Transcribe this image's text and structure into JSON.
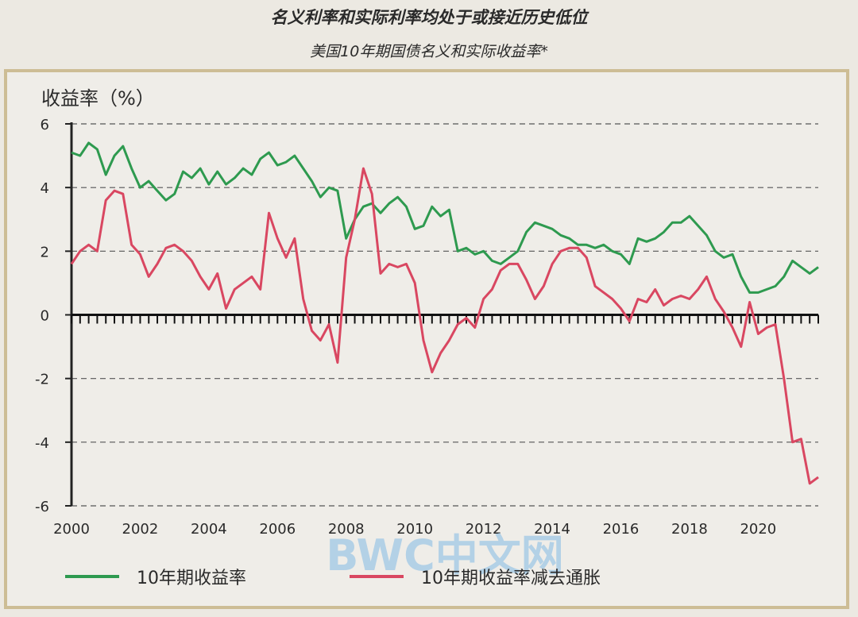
{
  "header": {
    "title": "名义利率和实际利率均处于或接近历史低位",
    "subtitle": "美国10年期国债名义和实际收益率*"
  },
  "watermark": "BWC中文网",
  "colors": {
    "nominal": "#2e9a4f",
    "real": "#d94761",
    "frame": "#cdbd95",
    "grid": "#555555",
    "background": "#efede8",
    "watermark": "#9fc7e6"
  },
  "chart_data": {
    "type": "line",
    "ylabel": "收益率（%）",
    "ylim": [
      -6,
      6
    ],
    "yticks": [
      6,
      4,
      2,
      0,
      -2,
      -4,
      -6
    ],
    "ytick_labels": [
      "6",
      "4",
      "2",
      "0",
      "-2",
      "-4",
      "-6"
    ],
    "xlim": [
      2000,
      2021.75
    ],
    "xticks": [
      2000,
      2002,
      2004,
      2006,
      2008,
      2010,
      2012,
      2014,
      2016,
      2018,
      2020
    ],
    "xtick_labels": [
      "2000",
      "2002",
      "2004",
      "2006",
      "2008",
      "2010",
      "2012",
      "2014",
      "2016",
      "2018",
      "2020"
    ],
    "grid": "horizontal dashed",
    "legend": "bottom",
    "series": [
      {
        "name": "10年期收益率",
        "color": "#2e9a4f",
        "x": [
          2000.0,
          2000.25,
          2000.5,
          2000.75,
          2001.0,
          2001.25,
          2001.5,
          2001.75,
          2002.0,
          2002.25,
          2002.5,
          2002.75,
          2003.0,
          2003.25,
          2003.5,
          2003.75,
          2004.0,
          2004.25,
          2004.5,
          2004.75,
          2005.0,
          2005.25,
          2005.5,
          2005.75,
          2006.0,
          2006.25,
          2006.5,
          2006.75,
          2007.0,
          2007.25,
          2007.5,
          2007.75,
          2008.0,
          2008.25,
          2008.5,
          2008.75,
          2009.0,
          2009.25,
          2009.5,
          2009.75,
          2010.0,
          2010.25,
          2010.5,
          2010.75,
          2011.0,
          2011.25,
          2011.5,
          2011.75,
          2012.0,
          2012.25,
          2012.5,
          2012.75,
          2013.0,
          2013.25,
          2013.5,
          2013.75,
          2014.0,
          2014.25,
          2014.5,
          2014.75,
          2015.0,
          2015.25,
          2015.5,
          2015.75,
          2016.0,
          2016.25,
          2016.5,
          2016.75,
          2017.0,
          2017.25,
          2017.5,
          2017.75,
          2018.0,
          2018.25,
          2018.5,
          2018.75,
          2019.0,
          2019.25,
          2019.5,
          2019.75,
          2020.0,
          2020.25,
          2020.5,
          2020.75,
          2021.0,
          2021.25,
          2021.5,
          2021.75
        ],
        "values": [
          5.1,
          5.0,
          5.4,
          5.2,
          4.4,
          5.0,
          5.3,
          4.6,
          4.0,
          4.2,
          3.9,
          3.6,
          3.8,
          4.5,
          4.3,
          4.6,
          4.1,
          4.5,
          4.1,
          4.3,
          4.6,
          4.4,
          4.9,
          5.1,
          4.7,
          4.8,
          5.0,
          4.6,
          4.2,
          3.7,
          4.0,
          3.9,
          2.4,
          3.0,
          3.4,
          3.5,
          3.2,
          3.5,
          3.7,
          3.4,
          2.7,
          2.8,
          3.4,
          3.1,
          3.3,
          2.0,
          2.1,
          1.9,
          2.0,
          1.7,
          1.6,
          1.8,
          2.0,
          2.6,
          2.9,
          2.8,
          2.7,
          2.5,
          2.4,
          2.2,
          2.2,
          2.1,
          2.2,
          2.0,
          1.9,
          1.6,
          2.4,
          2.3,
          2.4,
          2.6,
          2.9,
          2.9,
          3.1,
          2.8,
          2.5,
          2.0,
          1.8,
          1.9,
          1.2,
          0.7,
          0.7,
          0.8,
          0.9,
          1.2,
          1.7,
          1.5,
          1.3,
          1.5
        ]
      },
      {
        "name": "10年期收益率减去通胀",
        "color": "#d94761",
        "x": [
          2000.0,
          2000.25,
          2000.5,
          2000.75,
          2001.0,
          2001.25,
          2001.5,
          2001.75,
          2002.0,
          2002.25,
          2002.5,
          2002.75,
          2003.0,
          2003.25,
          2003.5,
          2003.75,
          2004.0,
          2004.25,
          2004.5,
          2004.75,
          2005.0,
          2005.25,
          2005.5,
          2005.75,
          2006.0,
          2006.25,
          2006.5,
          2006.75,
          2007.0,
          2007.25,
          2007.5,
          2007.75,
          2008.0,
          2008.25,
          2008.5,
          2008.75,
          2009.0,
          2009.25,
          2009.5,
          2009.75,
          2010.0,
          2010.25,
          2010.5,
          2010.75,
          2011.0,
          2011.25,
          2011.5,
          2011.75,
          2012.0,
          2012.25,
          2012.5,
          2012.75,
          2013.0,
          2013.25,
          2013.5,
          2013.75,
          2014.0,
          2014.25,
          2014.5,
          2014.75,
          2015.0,
          2015.25,
          2015.5,
          2015.75,
          2016.0,
          2016.25,
          2016.5,
          2016.75,
          2017.0,
          2017.25,
          2017.5,
          2017.75,
          2018.0,
          2018.25,
          2018.5,
          2018.75,
          2019.0,
          2019.25,
          2019.5,
          2019.75,
          2020.0,
          2020.25,
          2020.5,
          2020.75,
          2021.0,
          2021.25,
          2021.5,
          2021.75
        ],
        "values": [
          1.6,
          2.0,
          2.2,
          2.0,
          3.6,
          3.9,
          3.8,
          2.2,
          1.9,
          1.2,
          1.6,
          2.1,
          2.2,
          2.0,
          1.7,
          1.2,
          0.8,
          1.3,
          0.2,
          0.8,
          1.0,
          1.2,
          0.8,
          3.2,
          2.4,
          1.8,
          2.4,
          0.5,
          -0.5,
          -0.8,
          -0.3,
          -1.5,
          1.8,
          3.0,
          4.6,
          3.8,
          1.3,
          1.6,
          1.5,
          1.6,
          1.0,
          -0.8,
          -1.8,
          -1.2,
          -0.8,
          -0.3,
          -0.1,
          -0.4,
          0.5,
          0.8,
          1.4,
          1.6,
          1.6,
          1.1,
          0.5,
          0.9,
          1.6,
          2.0,
          2.1,
          2.1,
          1.8,
          0.9,
          0.7,
          0.5,
          0.2,
          -0.2,
          0.5,
          0.4,
          0.8,
          0.3,
          0.5,
          0.6,
          0.5,
          0.8,
          1.2,
          0.5,
          0.1,
          -0.4,
          -1.0,
          0.4,
          -0.6,
          -0.4,
          -0.3,
          -2.0,
          -4.0,
          -3.9,
          -5.3,
          -5.1
        ]
      }
    ]
  }
}
